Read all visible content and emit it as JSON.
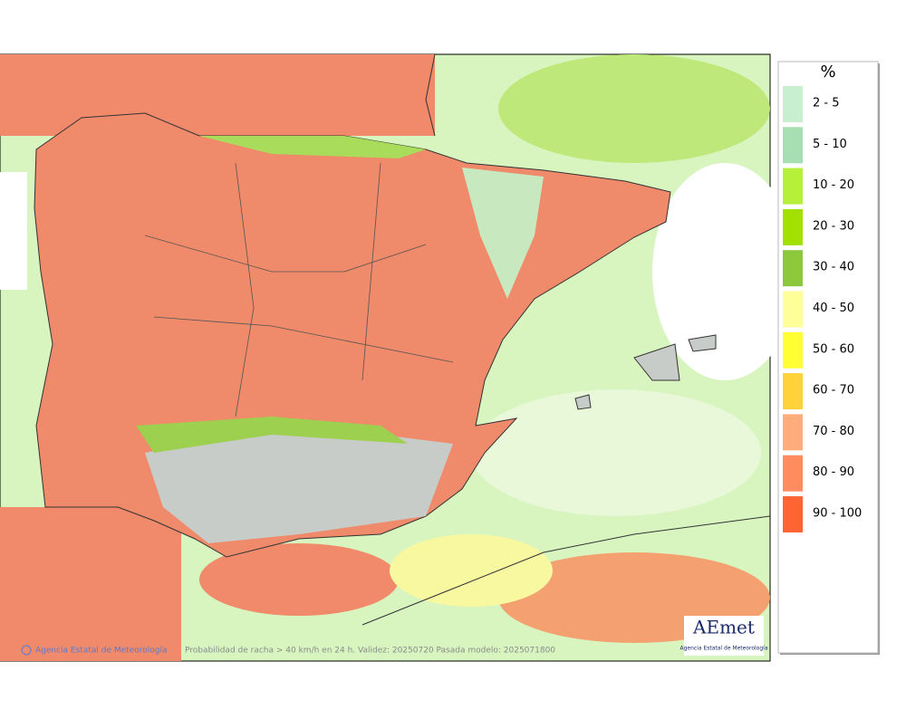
{
  "legend": {
    "unit": "%",
    "entries": [
      {
        "label": "2 - 5",
        "color": "#c8f0d0"
      },
      {
        "label": "5 - 10",
        "color": "#a6e0b2"
      },
      {
        "label": "10 - 20",
        "color": "#b6f03a"
      },
      {
        "label": "20 - 30",
        "color": "#a2e000"
      },
      {
        "label": "30 - 40",
        "color": "#8cc83c"
      },
      {
        "label": "40 - 50",
        "color": "#ffff99"
      },
      {
        "label": "50 - 60",
        "color": "#ffff33"
      },
      {
        "label": "60 - 70",
        "color": "#ffd23a"
      },
      {
        "label": "70 - 80",
        "color": "#ffac7c"
      },
      {
        "label": "80 - 90",
        "color": "#ff8c5e"
      },
      {
        "label": "90 - 100",
        "color": "#ff6432"
      }
    ]
  },
  "footer": {
    "copyright": "Agencia Estatal de Meteorología",
    "caption": "Probabilidad de racha > 40 km/h en 24 h. Validez: 20250720 Pasada modelo: 2025071800"
  },
  "logo": {
    "name": "AEmet",
    "subtitle": "Agencia Estatal de Meteorología"
  }
}
